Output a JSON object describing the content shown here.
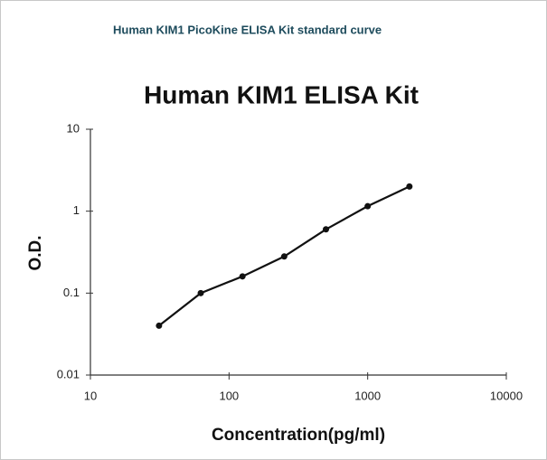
{
  "header": "Human KIM1 PicoKine ELISA Kit standard curve",
  "chart_data": {
    "type": "line",
    "title": "Human KIM1 ELISA Kit",
    "x_label": "Concentration(pg/ml)",
    "y_label": "O.D.",
    "x_scale": "log",
    "y_scale": "log",
    "xlim": [
      10,
      10000
    ],
    "ylim": [
      0.01,
      10
    ],
    "xticks": [
      10,
      100,
      1000,
      10000
    ],
    "yticks": [
      0.01,
      0.1,
      1,
      10
    ],
    "x": [
      31.25,
      62.5,
      125,
      250,
      500,
      1000,
      2000
    ],
    "series": [
      {
        "color": "#111111",
        "values": [
          0.04,
          0.1,
          0.16,
          0.28,
          0.6,
          1.15,
          2.0
        ]
      }
    ]
  }
}
